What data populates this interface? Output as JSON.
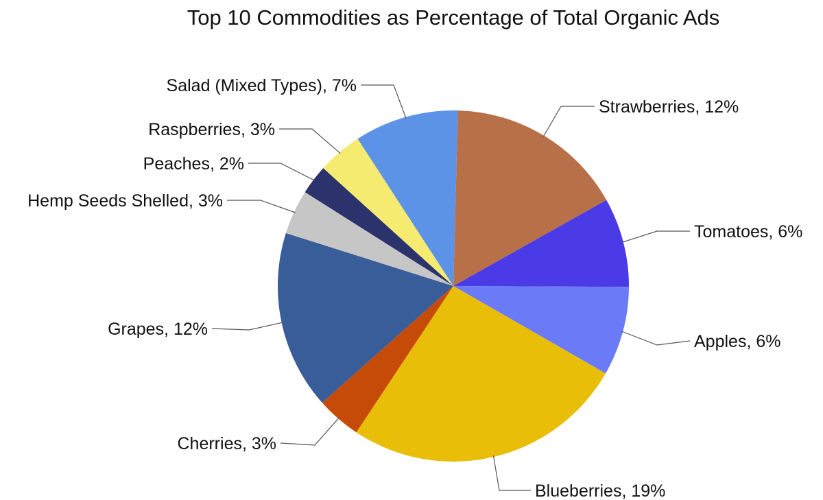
{
  "chart_data": {
    "type": "pie",
    "title": "Top 10 Commodities as Percentage of Total Organic Ads",
    "slices": [
      {
        "label": "Strawberries, 12%",
        "name": "Strawberries",
        "value": 12,
        "color": "#B87048"
      },
      {
        "label": "Tomatoes, 6%",
        "name": "Tomatoes",
        "value": 6,
        "color": "#4B3BE6"
      },
      {
        "label": "Apples, 6%",
        "name": "Apples",
        "value": 6,
        "color": "#6B7BF8"
      },
      {
        "label": "Blueberries, 19%",
        "name": "Blueberries",
        "value": 19,
        "color": "#E8BE08"
      },
      {
        "label": "Cherries, 3%",
        "name": "Cherries",
        "value": 3,
        "color": "#C64B08"
      },
      {
        "label": "Grapes, 12%",
        "name": "Grapes",
        "value": 12,
        "color": "#395D98"
      },
      {
        "label": "Hemp Seeds Shelled, 3%",
        "name": "Hemp Seeds Shelled",
        "value": 3,
        "color": "#C6C6C6"
      },
      {
        "label": "Peaches, 2%",
        "name": "Peaches",
        "value": 2,
        "color": "#2C336C"
      },
      {
        "label": "Raspberries, 3%",
        "name": "Raspberries",
        "value": 3,
        "color": "#F5EB71"
      },
      {
        "label": "Salad (Mixed Types), 7%",
        "name": "Salad (Mixed Types)",
        "value": 7,
        "color": "#5D93E6"
      }
    ],
    "legend": "none"
  }
}
